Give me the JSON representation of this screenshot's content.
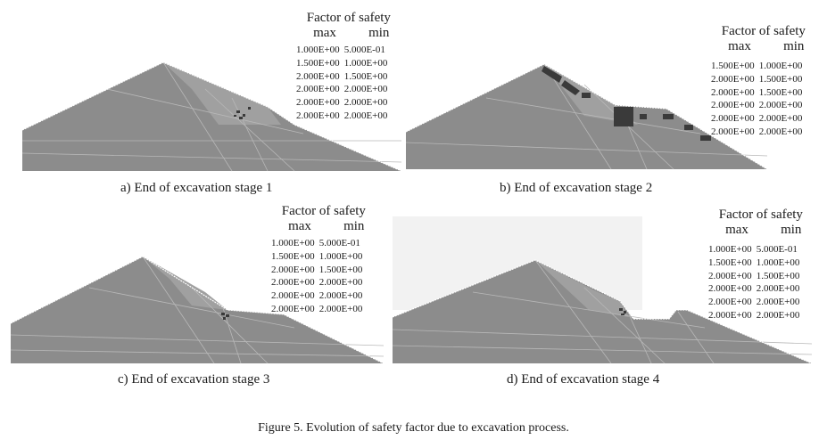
{
  "figure": {
    "caption": "Figure 5. Evolution of safety factor due to excavation process.",
    "panels": [
      {
        "caption": "a) End of excavation stage 1",
        "legend": {
          "title": "Factor of safety",
          "col_max": "max",
          "col_min": "min",
          "rows": [
            [
              "1.000E+00",
              "5.000E-01"
            ],
            [
              "1.500E+00",
              "1.000E+00"
            ],
            [
              "2.000E+00",
              "1.500E+00"
            ],
            [
              "2.000E+00",
              "2.000E+00"
            ],
            [
              "2.000E+00",
              "2.000E+00"
            ],
            [
              "2.000E+00",
              "2.000E+00"
            ]
          ]
        }
      },
      {
        "caption": "b) End of excavation stage 2",
        "legend": {
          "title": "Factor of safety",
          "col_max": "max",
          "col_min": "min",
          "rows": [
            [
              "1.500E+00",
              "1.000E+00"
            ],
            [
              "2.000E+00",
              "1.500E+00"
            ],
            [
              "2.000E+00",
              "1.500E+00"
            ],
            [
              "2.000E+00",
              "2.000E+00"
            ],
            [
              "2.000E+00",
              "2.000E+00"
            ],
            [
              "2.000E+00",
              "2.000E+00"
            ]
          ]
        }
      },
      {
        "caption": "c) End of excavation stage 3",
        "legend": {
          "title": "Factor of safety",
          "col_max": "max",
          "col_min": "min",
          "rows": [
            [
              "1.000E+00",
              "5.000E-01"
            ],
            [
              "1.500E+00",
              "1.000E+00"
            ],
            [
              "2.000E+00",
              "1.500E+00"
            ],
            [
              "2.000E+00",
              "2.000E+00"
            ],
            [
              "2.000E+00",
              "2.000E+00"
            ],
            [
              "2.000E+00",
              "2.000E+00"
            ]
          ]
        }
      },
      {
        "caption": "d) End of excavation stage 4",
        "legend": {
          "title": "Factor of safety",
          "col_max": "max",
          "col_min": "min",
          "rows": [
            [
              "1.000E+00",
              "5.000E-01"
            ],
            [
              "1.500E+00",
              "1.000E+00"
            ],
            [
              "2.000E+00",
              "1.500E+00"
            ],
            [
              "2.000E+00",
              "2.000E+00"
            ],
            [
              "2.000E+00",
              "2.000E+00"
            ],
            [
              "2.000E+00",
              "2.000E+00"
            ]
          ]
        }
      }
    ]
  },
  "colors": {
    "slope_fill": "#8c8c8c",
    "slope_light": "#a3a3a3",
    "mesh_line": "#b5b5b5",
    "critical_dark": "#3a3a3a",
    "surface_line": "#ffffff"
  }
}
